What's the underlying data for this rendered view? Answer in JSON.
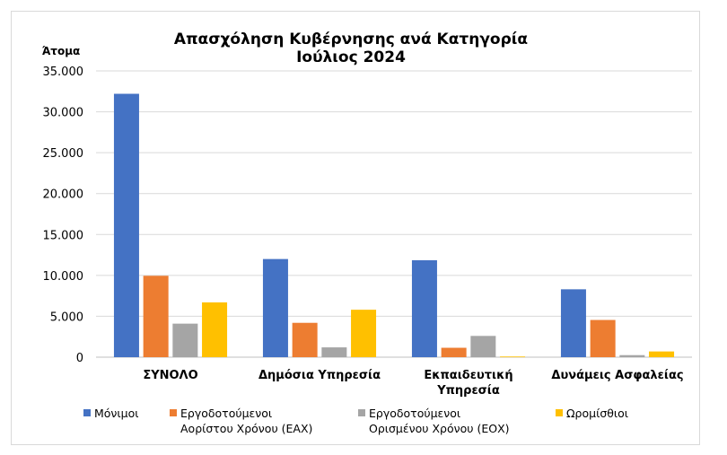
{
  "chart_data": {
    "type": "bar",
    "title": "Απασχόληση Κυβέρνησης ανά Κατηγορία",
    "subtitle": "Ιούλιος 2024",
    "ylabel": "Άτομα",
    "xlabel": "",
    "ylim": [
      0,
      35000
    ],
    "yticks": [
      "35.000",
      "30.000",
      "25.000",
      "20.000",
      "15.000",
      "10.000",
      "5.000",
      "0"
    ],
    "ytick_values": [
      35000,
      30000,
      25000,
      20000,
      15000,
      10000,
      5000,
      0
    ],
    "grid": true,
    "legend_position": "bottom",
    "categories": [
      [
        "ΣΥΝΟΛΟ"
      ],
      [
        "Δημόσια Υπηρεσία"
      ],
      [
        "Εκπαιδευτική",
        "Υπηρεσία"
      ],
      [
        "Δυνάμεις Ασφαλείας"
      ]
    ],
    "series": [
      {
        "name": [
          "Μόνιμοι"
        ],
        "color": "#4472c4",
        "values": [
          32200,
          12000,
          11850,
          8300
        ]
      },
      {
        "name": [
          "Εργοδοτούμενοι",
          "Αορίστου Χρόνου (ΕΑΧ)"
        ],
        "color": "#ed7d31",
        "values": [
          9950,
          4200,
          1150,
          4550
        ]
      },
      {
        "name": [
          "Εργοδοτούμενοι",
          "Ορισμένου Χρόνου (ΕΟΧ)"
        ],
        "color": "#a5a5a5",
        "values": [
          4100,
          1200,
          2600,
          250
        ]
      },
      {
        "name": [
          "Ωρομίσθιοι"
        ],
        "color": "#ffc000",
        "values": [
          6700,
          5800,
          80,
          700
        ]
      }
    ]
  }
}
